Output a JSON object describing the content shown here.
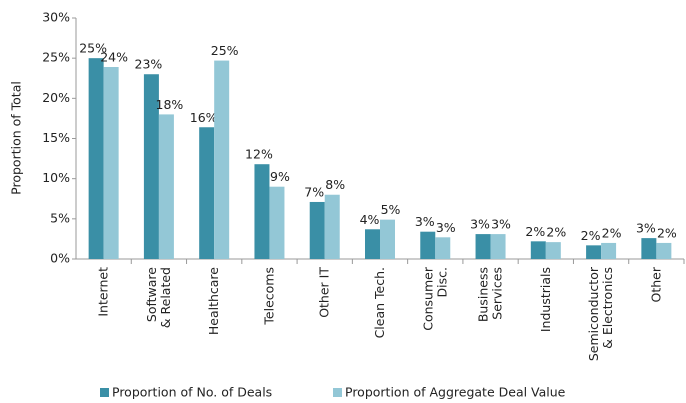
{
  "chart_data": {
    "type": "bar",
    "y_label": "Proportion of Total",
    "categories": [
      [
        "Internet"
      ],
      [
        "Software",
        "& Related"
      ],
      [
        "Healthcare"
      ],
      [
        "Telecoms"
      ],
      [
        "Other IT"
      ],
      [
        "Clean Tech."
      ],
      [
        "Consumer",
        "Disc."
      ],
      [
        "Business",
        "Services"
      ],
      [
        "Industrials"
      ],
      [
        "Semiconductor",
        "& Electronics"
      ],
      [
        "Other"
      ]
    ],
    "series": [
      {
        "name": "Proportion of No. of Deals",
        "color": "#3a8fa6",
        "values": [
          25.0,
          23.0,
          16.4,
          11.8,
          7.1,
          3.7,
          3.4,
          3.1,
          2.2,
          1.7,
          2.6
        ],
        "value_labels": [
          "25%",
          "23%",
          "16%",
          "12%",
          "7%",
          "4%",
          "3%",
          "3%",
          "2%",
          "2%",
          "3%"
        ]
      },
      {
        "name": "Proportion of Aggregate Deal Value",
        "color": "#93c7d6",
        "values": [
          23.9,
          18.0,
          24.7,
          9.0,
          8.0,
          4.9,
          2.7,
          3.1,
          2.1,
          2.0,
          2.0
        ],
        "value_labels": [
          "24%",
          "18%",
          "25%",
          "9%",
          "8%",
          "5%",
          "3%",
          "3%",
          "2%",
          "2%",
          "2%"
        ]
      }
    ],
    "ylim": [
      0,
      30
    ],
    "yticks": [
      {
        "value": 0,
        "label": "0%"
      },
      {
        "value": 5,
        "label": "5%"
      },
      {
        "value": 10,
        "label": "10%"
      },
      {
        "value": 15,
        "label": "15%"
      },
      {
        "value": 20,
        "label": "20%"
      },
      {
        "value": 25,
        "label": "25%"
      },
      {
        "value": 30,
        "label": "30%"
      }
    ],
    "grid": false,
    "legend": "bottom"
  }
}
